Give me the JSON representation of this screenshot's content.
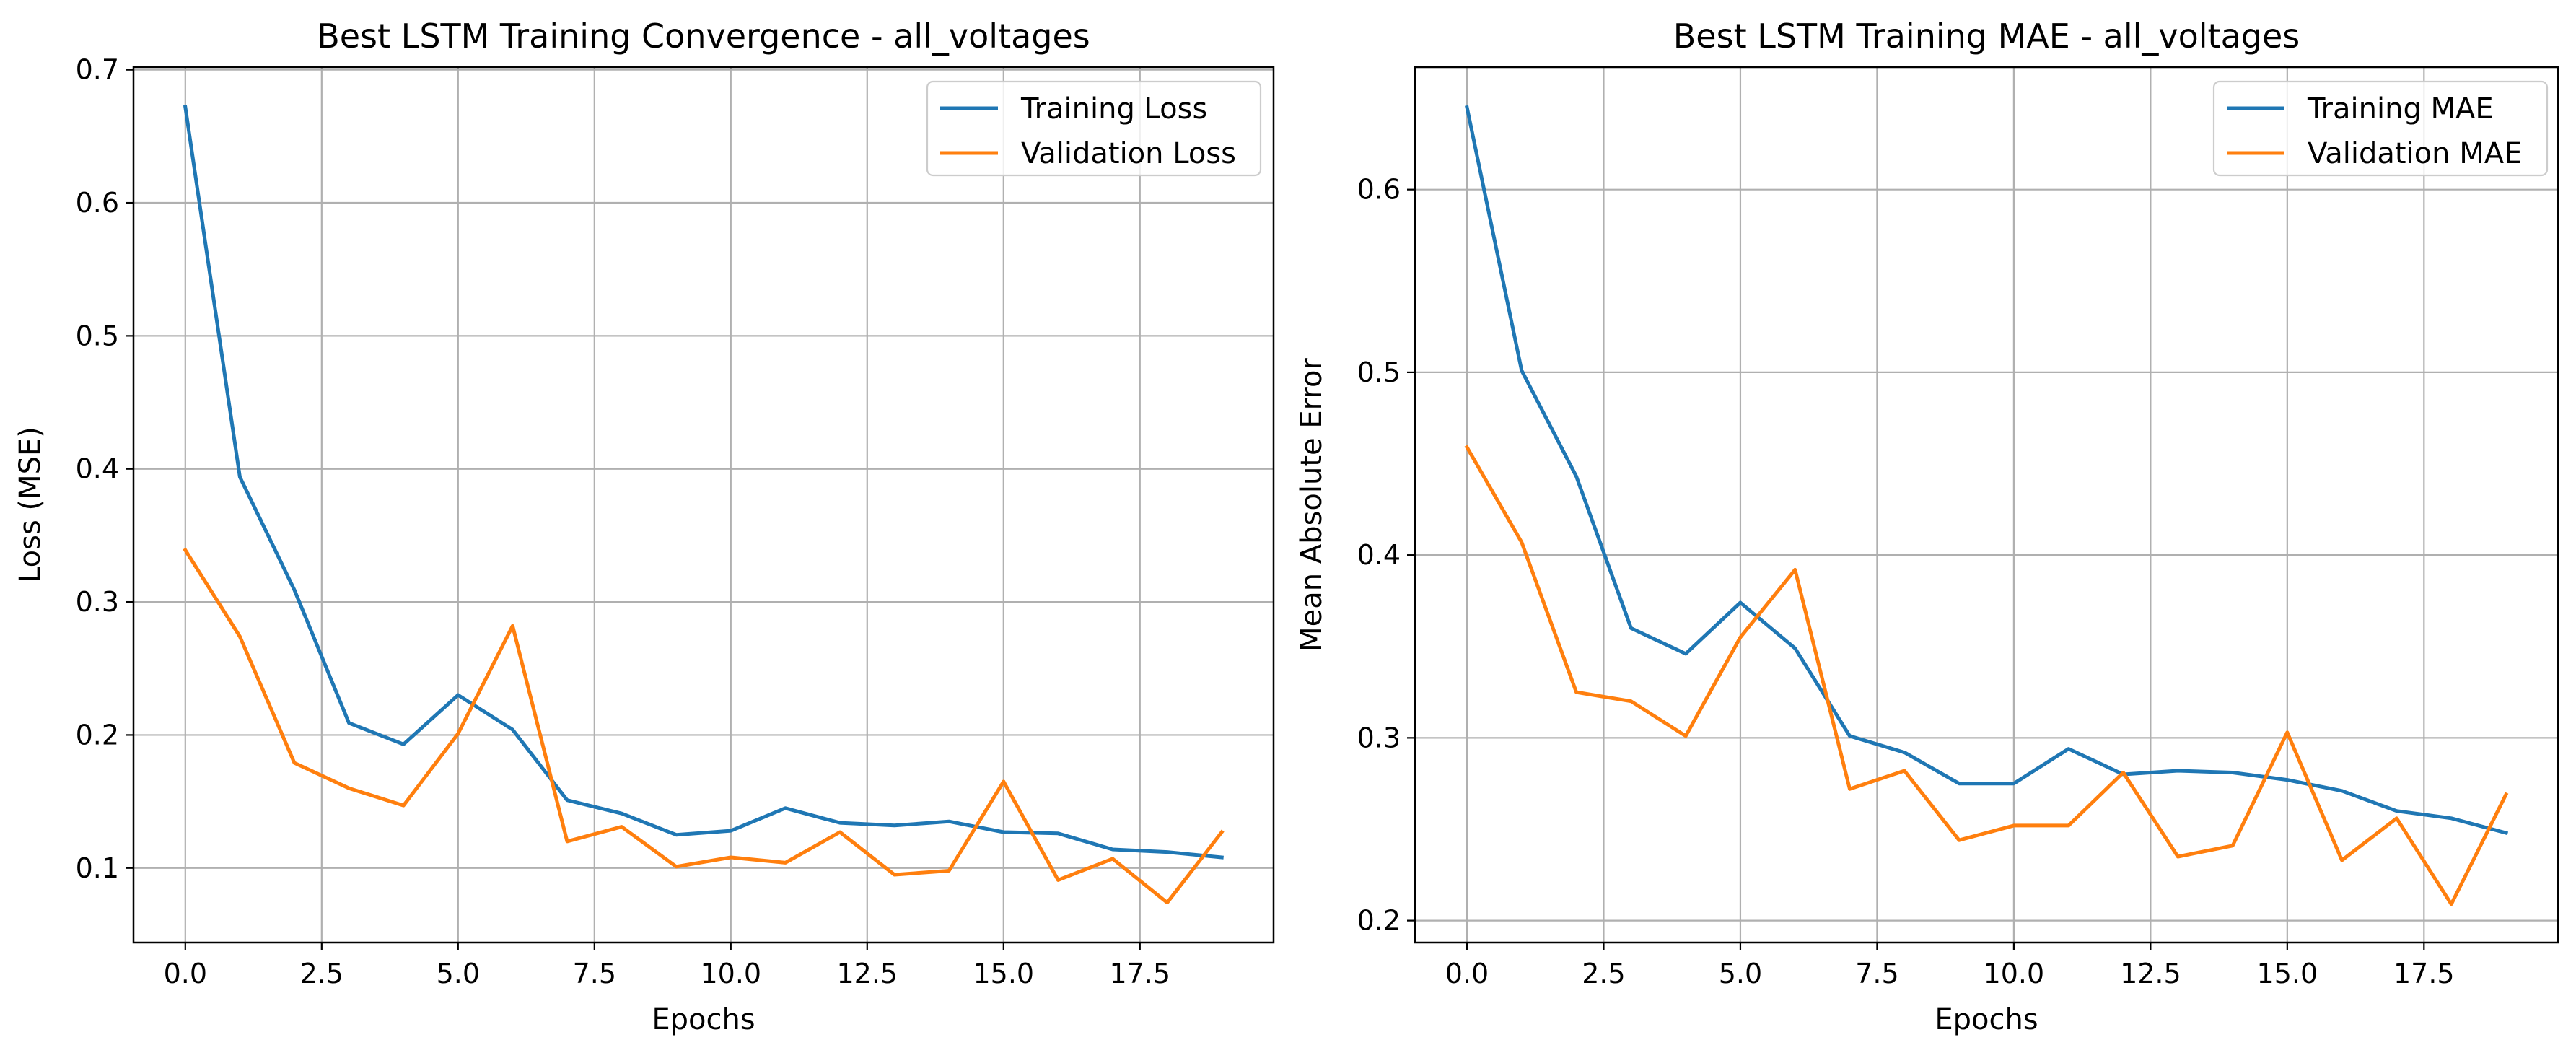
{
  "figure": {
    "background": "#ffffff",
    "series_colors": [
      "#1f77b4",
      "#ff7f0e"
    ]
  },
  "chart_data": [
    {
      "type": "line",
      "title": "Best LSTM Training Convergence - all_voltages",
      "xlabel": "Epochs",
      "ylabel": "Loss (MSE)",
      "xlim": [
        -0.95,
        19.95
      ],
      "ylim": [
        0.044,
        0.702
      ],
      "xticks": [
        0,
        2.5,
        5,
        7.5,
        10,
        12.5,
        15,
        17.5
      ],
      "xtick_labels": [
        "0.0",
        "2.5",
        "5.0",
        "7.5",
        "10.0",
        "12.5",
        "15.0",
        "17.5"
      ],
      "yticks": [
        0.1,
        0.2,
        0.3,
        0.4,
        0.5,
        0.6,
        0.7
      ],
      "ytick_labels": [
        "0.1",
        "0.2",
        "0.3",
        "0.4",
        "0.5",
        "0.6",
        "0.7"
      ],
      "grid": true,
      "legend_position": "top-right",
      "x": [
        0,
        1,
        2,
        3,
        4,
        5,
        6,
        7,
        8,
        9,
        10,
        11,
        12,
        13,
        14,
        15,
        16,
        17,
        18,
        19
      ],
      "series": [
        {
          "name": "Training Loss",
          "color": "#1f77b4",
          "values": [
            0.672,
            0.394,
            0.309,
            0.209,
            0.193,
            0.23,
            0.204,
            0.151,
            0.141,
            0.125,
            0.128,
            0.145,
            0.134,
            0.132,
            0.135,
            0.127,
            0.126,
            0.114,
            0.112,
            0.108
          ]
        },
        {
          "name": "Validation Loss",
          "color": "#ff7f0e",
          "values": [
            0.339,
            0.274,
            0.179,
            0.16,
            0.147,
            0.201,
            0.282,
            0.12,
            0.131,
            0.101,
            0.108,
            0.104,
            0.127,
            0.095,
            0.098,
            0.165,
            0.091,
            0.107,
            0.074,
            0.127
          ]
        }
      ]
    },
    {
      "type": "line",
      "title": "Best LSTM Training MAE - all_voltages",
      "xlabel": "Epochs",
      "ylabel": "Mean Absolute Error",
      "xlim": [
        -0.95,
        19.95
      ],
      "ylim": [
        0.188,
        0.667
      ],
      "xticks": [
        0,
        2.5,
        5,
        7.5,
        10,
        12.5,
        15,
        17.5
      ],
      "xtick_labels": [
        "0.0",
        "2.5",
        "5.0",
        "7.5",
        "10.0",
        "12.5",
        "15.0",
        "17.5"
      ],
      "yticks": [
        0.2,
        0.3,
        0.4,
        0.5,
        0.6
      ],
      "ytick_labels": [
        "0.2",
        "0.3",
        "0.4",
        "0.5",
        "0.6"
      ],
      "grid": true,
      "legend_position": "top-right",
      "x": [
        0,
        1,
        2,
        3,
        4,
        5,
        6,
        7,
        8,
        9,
        10,
        11,
        12,
        13,
        14,
        15,
        16,
        17,
        18,
        19
      ],
      "series": [
        {
          "name": "Training MAE",
          "color": "#1f77b4",
          "values": [
            0.645,
            0.501,
            0.443,
            0.36,
            0.346,
            0.374,
            0.349,
            0.301,
            0.292,
            0.275,
            0.275,
            0.294,
            0.28,
            0.282,
            0.281,
            0.277,
            0.271,
            0.26,
            0.256,
            0.248
          ]
        },
        {
          "name": "Validation MAE",
          "color": "#ff7f0e",
          "values": [
            0.459,
            0.407,
            0.325,
            0.32,
            0.301,
            0.355,
            0.392,
            0.272,
            0.282,
            0.244,
            0.252,
            0.252,
            0.281,
            0.235,
            0.241,
            0.303,
            0.233,
            0.256,
            0.209,
            0.269
          ]
        }
      ]
    }
  ]
}
